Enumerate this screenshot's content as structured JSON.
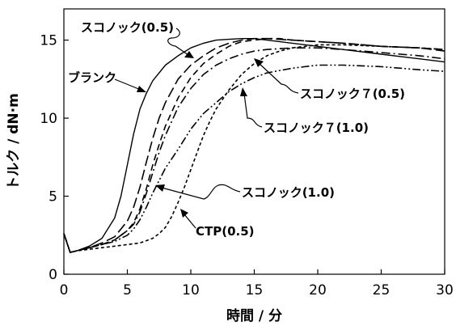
{
  "chart_data": {
    "type": "line",
    "xlabel": "時間 / 分",
    "ylabel": "トルク / dN·m",
    "xlim": [
      0,
      30
    ],
    "ylim": [
      0,
      17
    ],
    "x_ticks": [
      0,
      5,
      10,
      15,
      20,
      25,
      30
    ],
    "y_ticks": [
      0,
      5,
      10,
      15
    ],
    "grid": false,
    "series": [
      {
        "name": "ブランク",
        "style": "solid",
        "color": "#000000",
        "x": [
          0,
          0.5,
          1,
          2,
          3,
          4,
          4.5,
          5,
          5.5,
          6,
          6.5,
          7,
          8,
          9,
          10,
          11,
          12,
          13,
          14,
          15,
          16,
          18,
          20,
          22,
          25,
          28,
          30
        ],
        "y": [
          2.6,
          1.4,
          1.5,
          1.8,
          2.3,
          3.6,
          5.0,
          7.0,
          9.0,
          10.6,
          11.6,
          12.4,
          13.4,
          14.0,
          14.5,
          14.8,
          15.0,
          15.05,
          15.1,
          15.1,
          15.0,
          14.8,
          14.6,
          14.4,
          14.1,
          13.8,
          13.6
        ]
      },
      {
        "name": "スコノック(0.5)",
        "style": "long-dash",
        "color": "#000000",
        "x": [
          0,
          0.5,
          1,
          2,
          3,
          4,
          5,
          5.5,
          6,
          6.5,
          7,
          7.5,
          8,
          9,
          10,
          11,
          12,
          13,
          14,
          15,
          16,
          18,
          20,
          22,
          25,
          28,
          30
        ],
        "y": [
          2.6,
          1.4,
          1.5,
          1.7,
          2.0,
          2.4,
          3.4,
          4.3,
          5.6,
          7.2,
          8.7,
          10.0,
          11.0,
          12.5,
          13.4,
          14.0,
          14.5,
          14.8,
          15.0,
          15.1,
          15.1,
          15.0,
          14.9,
          14.8,
          14.6,
          14.5,
          14.3
        ]
      },
      {
        "name": "スコノック(1.0)",
        "style": "dash",
        "color": "#000000",
        "x": [
          0,
          0.5,
          1,
          2,
          3,
          4,
          5,
          5.5,
          6,
          6.5,
          7,
          7.5,
          8,
          9,
          10,
          11,
          12,
          13,
          14,
          15,
          16,
          17,
          18,
          20,
          22,
          25,
          28,
          30
        ],
        "y": [
          2.6,
          1.4,
          1.5,
          1.7,
          1.9,
          2.2,
          2.8,
          3.3,
          4.2,
          5.5,
          7.0,
          8.3,
          9.5,
          11.3,
          12.6,
          13.5,
          14.1,
          14.6,
          14.9,
          15.0,
          15.1,
          15.1,
          15.0,
          14.9,
          14.8,
          14.6,
          14.5,
          14.4
        ]
      },
      {
        "name": "スコノック７(0.5)",
        "style": "dash-dot",
        "color": "#000000",
        "x": [
          0,
          0.5,
          1,
          2,
          3,
          4,
          5,
          5.5,
          6,
          6.5,
          7,
          7.5,
          8,
          9,
          10,
          11,
          12,
          13,
          14,
          15,
          16,
          18,
          20,
          22,
          25,
          28,
          30
        ],
        "y": [
          2.6,
          1.4,
          1.5,
          1.7,
          1.9,
          2.2,
          2.8,
          3.2,
          4.0,
          5.2,
          6.5,
          7.8,
          8.9,
          10.7,
          11.9,
          12.8,
          13.4,
          13.8,
          14.1,
          14.3,
          14.4,
          14.5,
          14.5,
          14.4,
          14.2,
          14.0,
          13.8
        ]
      },
      {
        "name": "スコノック７(1.0)",
        "style": "dash-dot-dot",
        "color": "#000000",
        "x": [
          0,
          0.5,
          1,
          2,
          3,
          4,
          5,
          5.5,
          6,
          6.5,
          7,
          7.5,
          8,
          9,
          10,
          11,
          12,
          13,
          14,
          15,
          16,
          18,
          20,
          22,
          25,
          28,
          30
        ],
        "y": [
          2.6,
          1.4,
          1.5,
          1.7,
          1.9,
          2.1,
          2.5,
          2.9,
          3.5,
          4.3,
          5.2,
          6.0,
          6.8,
          8.0,
          9.3,
          10.3,
          11.0,
          11.7,
          12.2,
          12.6,
          12.9,
          13.2,
          13.4,
          13.4,
          13.3,
          13.1,
          13.0
        ]
      },
      {
        "name": "CTP(0.5)",
        "style": "short-dash",
        "color": "#000000",
        "x": [
          0,
          0.5,
          1,
          2,
          3,
          4,
          5,
          6,
          7,
          7.5,
          8,
          8.5,
          9,
          9.5,
          10,
          10.5,
          11,
          11.5,
          12,
          13,
          14,
          15,
          16,
          17,
          18,
          20,
          22,
          25,
          28,
          30
        ],
        "y": [
          2.6,
          1.4,
          1.5,
          1.6,
          1.7,
          1.8,
          1.9,
          2.0,
          2.3,
          2.6,
          3.0,
          3.7,
          4.6,
          5.6,
          6.7,
          7.8,
          8.9,
          9.8,
          10.6,
          11.8,
          12.8,
          13.5,
          14.0,
          14.3,
          14.5,
          14.7,
          14.7,
          14.6,
          14.5,
          14.4
        ]
      }
    ],
    "annotations": [
      {
        "text": "スコノック(0.5)"
      },
      {
        "text": "ブランク"
      },
      {
        "text": "スコノック７(0.5)"
      },
      {
        "text": "スコノック７(1.0)"
      },
      {
        "text": "スコノック(1.0)"
      },
      {
        "text": "CTP(0.5)"
      }
    ]
  }
}
